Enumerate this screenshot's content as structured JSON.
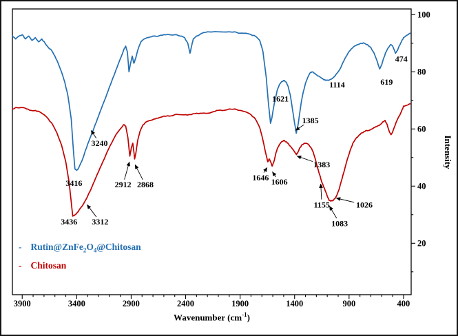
{
  "legend": {
    "dash": "-",
    "items": [
      {
        "p1": "Rutin@ZnFe",
        "s1": "2",
        "p2": "O",
        "s2": "4",
        "p3": "@Chitosan"
      },
      {
        "p1": "Chitosan"
      }
    ]
  },
  "axes": {
    "x": {
      "t1": "Wavenumber (cm",
      "sup": "-1",
      "t2": ")"
    },
    "y": {
      "title": "Intensity"
    }
  },
  "chart_data": {
    "type": "line",
    "title": "",
    "xlabel": "Wavenumber (cm-1)",
    "ylabel": "Intensity",
    "x_axis_reversed": true,
    "xlim_display": [
      3990,
      330
    ],
    "ylim": [
      2,
      102
    ],
    "x_ticks": [
      3900,
      3400,
      2900,
      2400,
      1900,
      1400,
      900,
      400
    ],
    "y_ticks": [
      20,
      40,
      60,
      80,
      100
    ],
    "grid": false,
    "legend_position": "lower-left-inside",
    "series": [
      {
        "name": "Rutin@ZnFe2O4@Chitosan",
        "color": "#2470b3",
        "points": [
          [
            3990,
            92.5
          ],
          [
            3960,
            91.5
          ],
          [
            3930,
            92.5
          ],
          [
            3900,
            93
          ],
          [
            3870,
            91.5
          ],
          [
            3840,
            92.5
          ],
          [
            3810,
            91
          ],
          [
            3780,
            92
          ],
          [
            3750,
            90.5
          ],
          [
            3720,
            91.5
          ],
          [
            3690,
            90
          ],
          [
            3660,
            88.5
          ],
          [
            3630,
            87.5
          ],
          [
            3600,
            85.5
          ],
          [
            3570,
            83
          ],
          [
            3540,
            80
          ],
          [
            3510,
            76.5
          ],
          [
            3480,
            71.5
          ],
          [
            3450,
            63.5
          ],
          [
            3430,
            52.5
          ],
          [
            3416,
            46
          ],
          [
            3400,
            45.5
          ],
          [
            3380,
            46.5
          ],
          [
            3350,
            49
          ],
          [
            3320,
            52.5
          ],
          [
            3290,
            55.5
          ],
          [
            3260,
            58.5
          ],
          [
            3240,
            60.5
          ],
          [
            3210,
            63.5
          ],
          [
            3180,
            66.5
          ],
          [
            3150,
            69.5
          ],
          [
            3120,
            72.5
          ],
          [
            3090,
            75.5
          ],
          [
            3060,
            78.5
          ],
          [
            3030,
            81.5
          ],
          [
            3000,
            84.5
          ],
          [
            2970,
            87.5
          ],
          [
            2950,
            89
          ],
          [
            2935,
            87
          ],
          [
            2920,
            80
          ],
          [
            2905,
            83
          ],
          [
            2890,
            85.5
          ],
          [
            2875,
            83
          ],
          [
            2860,
            84.5
          ],
          [
            2840,
            87.5
          ],
          [
            2810,
            90.5
          ],
          [
            2780,
            91.5
          ],
          [
            2740,
            92
          ],
          [
            2700,
            92.5
          ],
          [
            2650,
            92.5
          ],
          [
            2600,
            93
          ],
          [
            2550,
            93
          ],
          [
            2500,
            93
          ],
          [
            2450,
            92.5
          ],
          [
            2410,
            92
          ],
          [
            2380,
            90
          ],
          [
            2360,
            86.5
          ],
          [
            2345,
            89
          ],
          [
            2330,
            91.5
          ],
          [
            2300,
            92.5
          ],
          [
            2250,
            93.5
          ],
          [
            2200,
            94
          ],
          [
            2100,
            94
          ],
          [
            2000,
            94
          ],
          [
            1950,
            94
          ],
          [
            1900,
            93.5
          ],
          [
            1850,
            93.5
          ],
          [
            1800,
            93
          ],
          [
            1760,
            92.5
          ],
          [
            1720,
            91
          ],
          [
            1690,
            87
          ],
          [
            1660,
            78
          ],
          [
            1640,
            69
          ],
          [
            1621,
            62
          ],
          [
            1610,
            63.5
          ],
          [
            1595,
            67
          ],
          [
            1580,
            70
          ],
          [
            1560,
            73.5
          ],
          [
            1540,
            75.5
          ],
          [
            1520,
            76.5
          ],
          [
            1500,
            77
          ],
          [
            1480,
            76.5
          ],
          [
            1460,
            75
          ],
          [
            1440,
            72
          ],
          [
            1420,
            67
          ],
          [
            1400,
            62
          ],
          [
            1385,
            58.5
          ],
          [
            1370,
            61
          ],
          [
            1355,
            65
          ],
          [
            1340,
            69
          ],
          [
            1320,
            73
          ],
          [
            1300,
            76
          ],
          [
            1280,
            78
          ],
          [
            1260,
            79.5
          ],
          [
            1240,
            80
          ],
          [
            1220,
            79.5
          ],
          [
            1200,
            79
          ],
          [
            1180,
            78.5
          ],
          [
            1160,
            78
          ],
          [
            1140,
            77.5
          ],
          [
            1114,
            77
          ],
          [
            1090,
            77
          ],
          [
            1060,
            77.5
          ],
          [
            1030,
            78.5
          ],
          [
            1000,
            80
          ],
          [
            970,
            82
          ],
          [
            940,
            84.5
          ],
          [
            910,
            86.5
          ],
          [
            880,
            88
          ],
          [
            850,
            89
          ],
          [
            820,
            89.5
          ],
          [
            790,
            90
          ],
          [
            760,
            90
          ],
          [
            730,
            89.5
          ],
          [
            700,
            88.5
          ],
          [
            670,
            86.5
          ],
          [
            640,
            83.5
          ],
          [
            619,
            81
          ],
          [
            600,
            82.5
          ],
          [
            580,
            85
          ],
          [
            560,
            87
          ],
          [
            540,
            88.5
          ],
          [
            520,
            89.5
          ],
          [
            500,
            89
          ],
          [
            474,
            86.5
          ],
          [
            455,
            87.5
          ],
          [
            440,
            89
          ],
          [
            420,
            90.5
          ],
          [
            400,
            92
          ],
          [
            370,
            92.8
          ],
          [
            340,
            93.5
          ]
        ]
      },
      {
        "name": "Chitosan",
        "color": "#c00000",
        "points": [
          [
            3990,
            67
          ],
          [
            3950,
            67.5
          ],
          [
            3900,
            67.5
          ],
          [
            3860,
            67
          ],
          [
            3820,
            66.5
          ],
          [
            3780,
            66.5
          ],
          [
            3740,
            66
          ],
          [
            3700,
            65
          ],
          [
            3660,
            63.5
          ],
          [
            3620,
            61.5
          ],
          [
            3580,
            58.5
          ],
          [
            3540,
            54.5
          ],
          [
            3500,
            48.5
          ],
          [
            3470,
            41.5
          ],
          [
            3450,
            34.5
          ],
          [
            3436,
            29.5
          ],
          [
            3420,
            29.8
          ],
          [
            3400,
            30.5
          ],
          [
            3380,
            31.5
          ],
          [
            3350,
            33
          ],
          [
            3312,
            35.5
          ],
          [
            3280,
            38
          ],
          [
            3240,
            41.5
          ],
          [
            3200,
            45
          ],
          [
            3160,
            48.5
          ],
          [
            3120,
            52
          ],
          [
            3080,
            55
          ],
          [
            3040,
            58
          ],
          [
            3000,
            60
          ],
          [
            2970,
            61.5
          ],
          [
            2950,
            61
          ],
          [
            2930,
            57
          ],
          [
            2912,
            50.5
          ],
          [
            2898,
            53.5
          ],
          [
            2885,
            55
          ],
          [
            2875,
            52
          ],
          [
            2868,
            49.5
          ],
          [
            2855,
            52
          ],
          [
            2840,
            56
          ],
          [
            2820,
            59
          ],
          [
            2790,
            61.5
          ],
          [
            2760,
            62.5
          ],
          [
            2720,
            63
          ],
          [
            2680,
            63.5
          ],
          [
            2640,
            64
          ],
          [
            2600,
            64.5
          ],
          [
            2550,
            64.5
          ],
          [
            2500,
            65
          ],
          [
            2450,
            65
          ],
          [
            2400,
            65
          ],
          [
            2350,
            65
          ],
          [
            2300,
            65.5
          ],
          [
            2250,
            65.5
          ],
          [
            2200,
            65.5
          ],
          [
            2150,
            66
          ],
          [
            2100,
            66.5
          ],
          [
            2050,
            66.5
          ],
          [
            2000,
            67
          ],
          [
            1950,
            67
          ],
          [
            1900,
            66.5
          ],
          [
            1850,
            66
          ],
          [
            1800,
            65
          ],
          [
            1760,
            63.5
          ],
          [
            1720,
            60.5
          ],
          [
            1690,
            56
          ],
          [
            1665,
            51.5
          ],
          [
            1646,
            48.5
          ],
          [
            1633,
            49.5
          ],
          [
            1620,
            48.5
          ],
          [
            1606,
            47
          ],
          [
            1590,
            48.5
          ],
          [
            1575,
            51
          ],
          [
            1560,
            53
          ],
          [
            1540,
            54.5
          ],
          [
            1520,
            55.5
          ],
          [
            1500,
            56
          ],
          [
            1480,
            55.5
          ],
          [
            1460,
            55
          ],
          [
            1440,
            54
          ],
          [
            1420,
            53
          ],
          [
            1400,
            52
          ],
          [
            1383,
            51
          ],
          [
            1368,
            52
          ],
          [
            1350,
            53.5
          ],
          [
            1330,
            54.5
          ],
          [
            1310,
            55
          ],
          [
            1290,
            55
          ],
          [
            1270,
            54.5
          ],
          [
            1250,
            53.5
          ],
          [
            1230,
            52
          ],
          [
            1210,
            49.5
          ],
          [
            1190,
            46.5
          ],
          [
            1170,
            44
          ],
          [
            1155,
            42
          ],
          [
            1140,
            40.5
          ],
          [
            1120,
            38.5
          ],
          [
            1100,
            36.5
          ],
          [
            1083,
            35
          ],
          [
            1065,
            34.8
          ],
          [
            1045,
            35
          ],
          [
            1026,
            35.8
          ],
          [
            1010,
            37
          ],
          [
            990,
            39
          ],
          [
            965,
            42.5
          ],
          [
            940,
            46
          ],
          [
            915,
            49.5
          ],
          [
            890,
            52.5
          ],
          [
            865,
            55
          ],
          [
            840,
            56.5
          ],
          [
            815,
            57.5
          ],
          [
            790,
            58.5
          ],
          [
            765,
            59
          ],
          [
            740,
            59.5
          ],
          [
            715,
            59.5
          ],
          [
            690,
            60
          ],
          [
            665,
            60.5
          ],
          [
            640,
            61
          ],
          [
            615,
            61.5
          ],
          [
            590,
            62.5
          ],
          [
            570,
            63
          ],
          [
            550,
            61.5
          ],
          [
            530,
            59
          ],
          [
            515,
            58
          ],
          [
            500,
            59
          ],
          [
            480,
            61
          ],
          [
            460,
            63
          ],
          [
            440,
            64.5
          ],
          [
            420,
            66
          ],
          [
            400,
            68
          ],
          [
            370,
            68.3
          ],
          [
            340,
            68.8
          ]
        ]
      }
    ],
    "annotations": [
      {
        "label": "3240",
        "at": [
          3190,
          55
        ],
        "arrow_to": [
          3268,
          59.5
        ]
      },
      {
        "label": "3416",
        "at": [
          3425,
          41
        ]
      },
      {
        "label": "3436",
        "at": [
          3470,
          27.5
        ]
      },
      {
        "label": "3312",
        "at": [
          3185,
          27.5
        ],
        "arrow_to": [
          3305,
          33.5
        ]
      },
      {
        "label": "2912",
        "at": [
          2975,
          40.5
        ],
        "arrow_to": [
          2916,
          48.5
        ]
      },
      {
        "label": "2868",
        "at": [
          2770,
          40.5
        ],
        "arrow_to": [
          2864,
          47.5
        ]
      },
      {
        "label": "1646",
        "at": [
          1712,
          43
        ],
        "arrow_to": [
          1652,
          46.5
        ]
      },
      {
        "label": "1606",
        "at": [
          1540,
          41.5
        ],
        "arrow_to": [
          1604,
          45
        ]
      },
      {
        "label": "1621",
        "at": [
          1530,
          70.5
        ]
      },
      {
        "label": "1385",
        "at": [
          1255,
          63
        ],
        "arrow_to": [
          1392,
          59.5
        ]
      },
      {
        "label": "1383",
        "at": [
          1150,
          47.5
        ],
        "arrow_to": [
          1378,
          50.5
        ]
      },
      {
        "label": "1114",
        "at": [
          1010,
          75.5
        ]
      },
      {
        "label": "1155",
        "at": [
          1150,
          33.5
        ],
        "arrow_to": [
          1160,
          40.8
        ]
      },
      {
        "label": "1083",
        "at": [
          987,
          27
        ],
        "arrow_to": [
          1080,
          33
        ]
      },
      {
        "label": "1026",
        "at": [
          760,
          33.5
        ],
        "arrow_to": [
          1018,
          35.8
        ]
      },
      {
        "label": "619",
        "at": [
          555,
          76.5
        ]
      },
      {
        "label": "474",
        "at": [
          420,
          84.5
        ]
      }
    ]
  }
}
